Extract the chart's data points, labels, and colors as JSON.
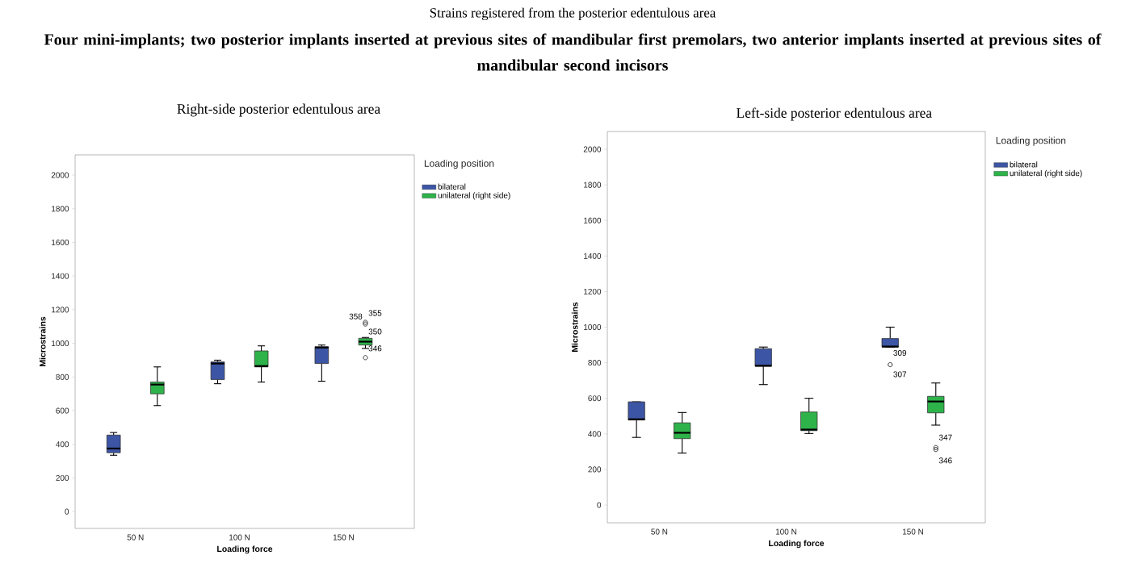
{
  "chart_data": [
    {
      "type": "other",
      "title": "Strains registered from the posterior edentulous area",
      "subtitle": "Four mini-implants; two posterior implants inserted at previous sites of mandibular first premolars, two anterior implants inserted at previous sites of mandibular second incisors"
    },
    {
      "type": "box",
      "title": "Right-side posterior edentulous area",
      "xlabel": "Loading force",
      "ylabel": "Microstrains",
      "legend_title": "Loading position",
      "legend": "right",
      "categories": [
        "50 N",
        "100 N",
        "150 N"
      ],
      "ylim": [
        -100,
        2120
      ],
      "yticks": [
        0,
        200,
        400,
        600,
        800,
        1000,
        1200,
        1400,
        1600,
        1800,
        2000
      ],
      "series": [
        {
          "name": "bilateral",
          "color": "#3c55a5",
          "boxes": [
            {
              "low": 335,
              "q1": 350,
              "median": 375,
              "q3": 455,
              "high": 470
            },
            {
              "low": 760,
              "q1": 785,
              "median": 880,
              "q3": 890,
              "high": 900
            },
            {
              "low": 775,
              "q1": 880,
              "median": 975,
              "q3": 980,
              "high": 990
            }
          ]
        },
        {
          "name": "unilateral  (right side)",
          "color": "#2db34a",
          "boxes": [
            {
              "low": 630,
              "q1": 700,
              "median": 755,
              "q3": 770,
              "high": 860
            },
            {
              "low": 770,
              "q1": 860,
              "median": 865,
              "q3": 955,
              "high": 985
            },
            {
              "low": 970,
              "q1": 990,
              "median": 1010,
              "q3": 1030,
              "high": 1035,
              "outliers": [
                1125,
                1115,
                915
              ]
            }
          ]
        }
      ],
      "annotations": [
        "358",
        "355",
        "350",
        "346"
      ]
    },
    {
      "type": "box",
      "title": "Left-side posterior edentulous area",
      "xlabel": "Loading force",
      "ylabel": "Microstrains",
      "legend_title": "Loading position",
      "legend": "right",
      "categories": [
        "50 N",
        "100 N",
        "150 N"
      ],
      "ylim": [
        -100,
        2100
      ],
      "yticks": [
        0,
        200,
        400,
        600,
        800,
        1000,
        1200,
        1400,
        1600,
        1800,
        2000
      ],
      "series": [
        {
          "name": "bilateral",
          "color": "#3c55a5",
          "boxes": [
            {
              "low": 380,
              "q1": 478,
              "median": 482,
              "q3": 580,
              "high": 580
            },
            {
              "low": 677,
              "q1": 780,
              "median": 783,
              "q3": 879,
              "high": 888
            },
            {
              "low": 888,
              "q1": 888,
              "median": 891,
              "q3": 936,
              "high": 1000,
              "outliers": [
                789
              ]
            }
          ]
        },
        {
          "name": "unilateral  (right side)",
          "color": "#2db34a",
          "boxes": [
            {
              "low": 292,
              "q1": 373,
              "median": 406,
              "q3": 462,
              "high": 520
            },
            {
              "low": 402,
              "q1": 418,
              "median": 424,
              "q3": 523,
              "high": 600
            },
            {
              "low": 449,
              "q1": 518,
              "median": 582,
              "q3": 611,
              "high": 686,
              "outliers": [
                323,
                312
              ]
            }
          ]
        }
      ],
      "annotations": [
        "309",
        "307",
        "347",
        "346"
      ]
    }
  ]
}
